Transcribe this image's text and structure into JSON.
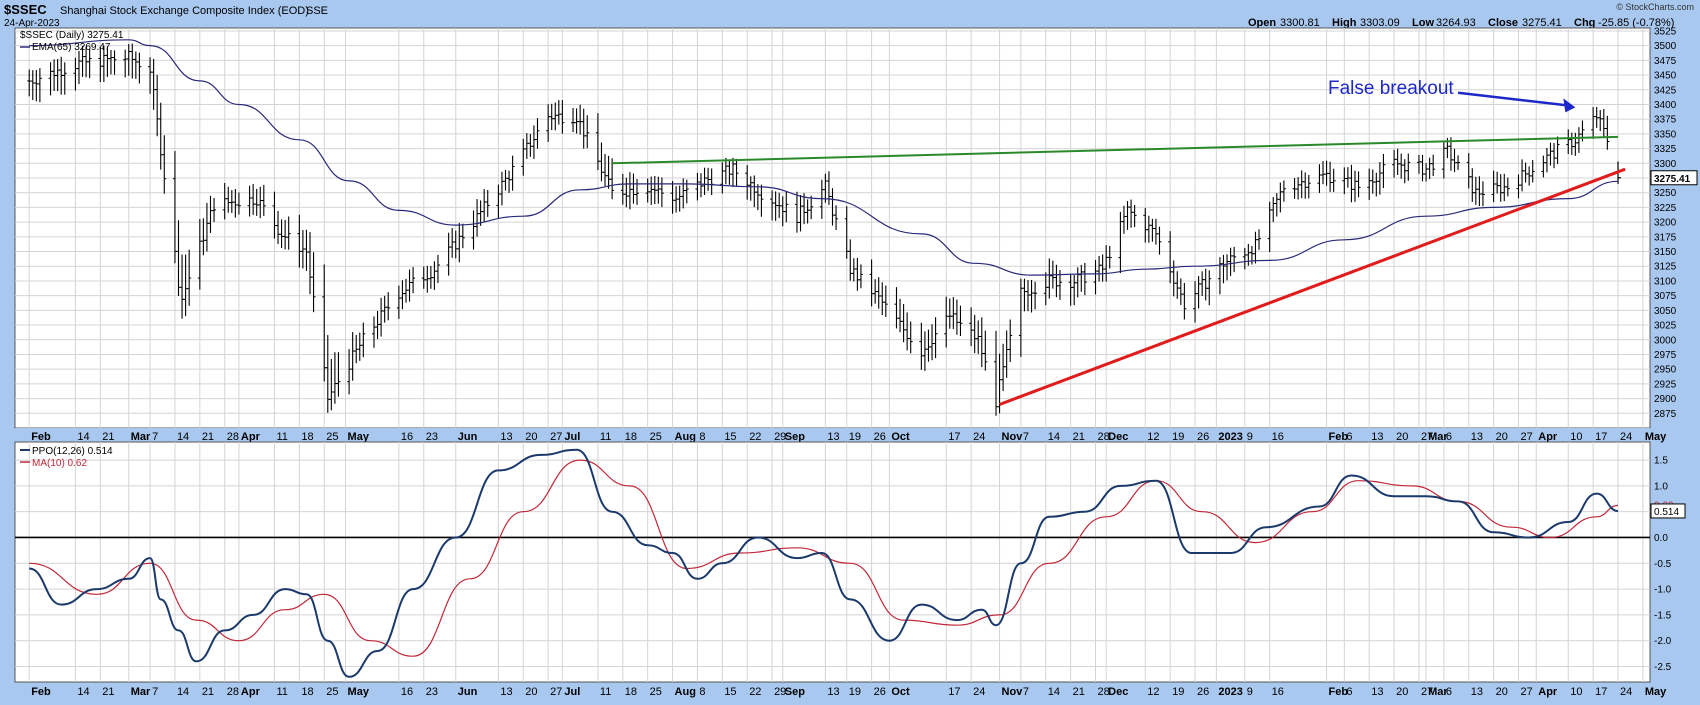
{
  "header": {
    "symbol": "$SSEC",
    "name": "Shanghai Stock Exchange Composite Index (EOD)",
    "exchange": "SSE",
    "date": "24-Apr-2023",
    "quote": {
      "open_label": "Open",
      "open": "3300.81",
      "high_label": "High",
      "high": "3303.09",
      "low_label": "Low",
      "low": "3264.93",
      "close_label": "Close",
      "close": "3275.41",
      "chg_label": "Chg",
      "chg": "-25.85 (-0.78%)"
    },
    "credit": "© StockCharts.com"
  },
  "colors": {
    "price_bar": "#000000",
    "ema": "#2a2a7a",
    "ppo": "#1b3a6b",
    "ppo_signal": "#c0283a",
    "green_line": "#2a8a2a",
    "red_line": "#e01c1c",
    "annotation": "#1e28c8",
    "grid": "#d4d4d4"
  },
  "chart_data": [
    {
      "type": "ohlc",
      "panel": "price",
      "legend": [
        "$SSEC (Daily) 3275.41",
        "EMA(65) 3269.47"
      ],
      "ylim": [
        2850,
        3530
      ],
      "yticks": [
        2875,
        2900,
        2925,
        2950,
        2975,
        3000,
        3025,
        3050,
        3075,
        3100,
        3125,
        3150,
        3175,
        3200,
        3225,
        3250,
        3275,
        3300,
        3325,
        3350,
        3375,
        3400,
        3425,
        3450,
        3475,
        3500,
        3525
      ],
      "last_value_label": "3275.41",
      "annotation": {
        "text": "False breakout"
      },
      "price_series": {
        "name": "$SSEC (Daily)",
        "x": [
          "2022-02-01",
          "2022-02-15",
          "2022-03-01",
          "2022-03-07",
          "2022-03-15",
          "2022-03-16",
          "2022-03-25",
          "2022-04-06",
          "2022-04-13",
          "2022-04-20",
          "2022-04-26",
          "2022-05-06",
          "2022-05-16",
          "2022-05-26",
          "2022-06-06",
          "2022-06-16",
          "2022-06-27",
          "2022-07-05",
          "2022-07-15",
          "2022-07-25",
          "2022-08-02",
          "2022-08-10",
          "2022-08-18",
          "2022-08-26",
          "2022-09-05",
          "2022-09-13",
          "2022-09-20",
          "2022-09-28",
          "2022-10-10",
          "2022-10-18",
          "2022-10-26",
          "2022-10-31",
          "2022-11-07",
          "2022-11-15",
          "2022-11-22",
          "2022-11-30",
          "2022-12-07",
          "2022-12-15",
          "2022-12-23",
          "2023-01-03",
          "2023-01-12",
          "2023-01-20",
          "2023-02-01",
          "2023-02-10",
          "2023-02-20",
          "2023-03-01",
          "2023-03-07",
          "2023-03-15",
          "2023-03-24",
          "2023-04-04",
          "2023-04-12",
          "2023-04-18",
          "2023-04-21",
          "2023-04-24"
        ],
        "close": [
          3440,
          3470,
          3480,
          3460,
          3100,
          3070,
          3230,
          3240,
          3180,
          3150,
          2900,
          3000,
          3080,
          3120,
          3200,
          3280,
          3380,
          3380,
          3250,
          3260,
          3240,
          3270,
          3290,
          3250,
          3210,
          3260,
          3120,
          3070,
          2980,
          3040,
          3000,
          2895,
          3080,
          3100,
          3100,
          3120,
          3220,
          3180,
          3060,
          3130,
          3160,
          3260,
          3280,
          3260,
          3300,
          3290,
          3320,
          3250,
          3260,
          3310,
          3340,
          3380,
          3340,
          3275.41
        ],
        "high": [
          3470,
          3500,
          3500,
          3480,
          3200,
          3180,
          3270,
          3280,
          3230,
          3200,
          3010,
          3030,
          3120,
          3150,
          3240,
          3300,
          3420,
          3420,
          3310,
          3300,
          3270,
          3300,
          3300,
          3270,
          3250,
          3280,
          3150,
          3110,
          3040,
          3090,
          3040,
          2990,
          3100,
          3150,
          3120,
          3150,
          3240,
          3200,
          3090,
          3150,
          3180,
          3280,
          3310,
          3290,
          3320,
          3310,
          3340,
          3280,
          3290,
          3330,
          3360,
          3400,
          3370,
          3303.09
        ],
        "low": [
          3390,
          3420,
          3430,
          3400,
          3080,
          3020,
          3200,
          3210,
          3150,
          3100,
          2870,
          2960,
          3050,
          3090,
          3170,
          3250,
          3350,
          3350,
          3220,
          3230,
          3200,
          3240,
          3260,
          3200,
          3180,
          3230,
          3100,
          3040,
          2940,
          3000,
          2960,
          2880,
          3020,
          3070,
          3050,
          3090,
          3180,
          3150,
          3030,
          3080,
          3130,
          3230,
          3250,
          3230,
          3260,
          3270,
          3300,
          3220,
          3240,
          3290,
          3320,
          3350,
          3320,
          3264.93
        ]
      },
      "ema": {
        "name": "EMA(65)",
        "x": [
          "2022-02-01",
          "2022-03-01",
          "2022-03-07",
          "2022-03-21",
          "2022-04-01",
          "2022-04-18",
          "2022-05-02",
          "2022-05-16",
          "2022-06-01",
          "2022-06-20",
          "2022-07-06",
          "2022-07-20",
          "2022-08-05",
          "2022-08-25",
          "2022-09-12",
          "2022-10-10",
          "2022-10-25",
          "2022-11-10",
          "2022-11-28",
          "2022-12-12",
          "2022-12-26",
          "2023-01-16",
          "2023-02-06",
          "2023-03-01",
          "2023-03-20",
          "2023-04-10",
          "2023-04-24"
        ],
        "values": [
          3500,
          3510,
          3500,
          3440,
          3400,
          3340,
          3270,
          3220,
          3195,
          3210,
          3255,
          3265,
          3265,
          3260,
          3240,
          3180,
          3130,
          3110,
          3112,
          3120,
          3125,
          3135,
          3170,
          3210,
          3225,
          3240,
          3269.47
        ]
      },
      "trendlines": [
        {
          "name": "resistance",
          "color": "green",
          "x": [
            "2022-07-15",
            "2023-04-24"
          ],
          "y": [
            3300,
            3345
          ]
        },
        {
          "name": "support",
          "color": "red",
          "x": [
            "2022-11-01",
            "2023-04-26"
          ],
          "y": [
            2890,
            3290
          ]
        }
      ],
      "arrow": {
        "x": [
          "2023-03-10",
          "2023-04-12"
        ],
        "y": [
          3420,
          3395
        ]
      }
    },
    {
      "type": "line",
      "panel": "ppo",
      "legend": [
        "PPO(12,26) 0.514",
        "MA(10) 0.62"
      ],
      "ylim": [
        -2.8,
        1.85
      ],
      "yticks": [
        -2.5,
        -2.0,
        -1.5,
        -1.0,
        -0.5,
        0.0,
        0.5,
        1.0,
        1.5
      ],
      "ytick_labels": [
        "-2.5",
        "-2.0",
        "-1.5",
        "-1.0",
        "-0.5",
        "0.0",
        "0.5",
        "1.0",
        "1.5"
      ],
      "last_value_label": "0.514",
      "signal_value_label": "0.62",
      "zero_line": 0,
      "series": [
        {
          "name": "PPO(12,26)",
          "x": [
            "2022-02-01",
            "2022-02-10",
            "2022-02-20",
            "2022-03-01",
            "2022-03-07",
            "2022-03-10",
            "2022-03-15",
            "2022-03-20",
            "2022-03-28",
            "2022-04-05",
            "2022-04-14",
            "2022-04-20",
            "2022-04-26",
            "2022-05-02",
            "2022-05-10",
            "2022-05-20",
            "2022-06-01",
            "2022-06-13",
            "2022-06-25",
            "2022-07-05",
            "2022-07-15",
            "2022-07-25",
            "2022-08-01",
            "2022-08-08",
            "2022-08-15",
            "2022-08-25",
            "2022-09-05",
            "2022-09-12",
            "2022-09-20",
            "2022-10-01",
            "2022-10-10",
            "2022-10-20",
            "2022-10-27",
            "2022-10-31",
            "2022-11-07",
            "2022-11-15",
            "2022-11-25",
            "2022-12-05",
            "2022-12-15",
            "2022-12-25",
            "2023-01-05",
            "2023-01-15",
            "2023-01-30",
            "2023-02-08",
            "2023-02-20",
            "2023-03-01",
            "2023-03-10",
            "2023-03-20",
            "2023-03-30",
            "2023-04-10",
            "2023-04-18",
            "2023-04-24"
          ],
          "values": [
            -0.6,
            -1.3,
            -1.0,
            -0.8,
            -0.4,
            -1.2,
            -1.8,
            -2.4,
            -1.8,
            -1.5,
            -1.0,
            -1.1,
            -2.0,
            -2.7,
            -2.2,
            -1.0,
            0.0,
            1.3,
            1.6,
            1.7,
            0.5,
            -0.15,
            -0.3,
            -0.8,
            -0.5,
            0.0,
            -0.4,
            -0.3,
            -1.2,
            -2.0,
            -1.3,
            -1.6,
            -1.4,
            -1.7,
            -0.5,
            0.4,
            0.5,
            1.0,
            1.1,
            -0.3,
            -0.3,
            0.2,
            0.6,
            1.2,
            0.8,
            0.8,
            0.7,
            0.1,
            0.0,
            0.3,
            0.85,
            0.514
          ]
        },
        {
          "name": "MA(10)",
          "x": [
            "2022-02-01",
            "2022-02-20",
            "2022-03-07",
            "2022-03-20",
            "2022-04-01",
            "2022-04-14",
            "2022-04-25",
            "2022-05-08",
            "2022-05-20",
            "2022-06-05",
            "2022-06-20",
            "2022-07-06",
            "2022-07-20",
            "2022-08-05",
            "2022-08-20",
            "2022-09-05",
            "2022-09-20",
            "2022-10-05",
            "2022-10-20",
            "2022-11-01",
            "2022-11-15",
            "2022-12-01",
            "2022-12-15",
            "2022-12-28",
            "2023-01-12",
            "2023-01-28",
            "2023-02-10",
            "2023-02-25",
            "2023-03-10",
            "2023-03-25",
            "2023-04-05",
            "2023-04-18",
            "2023-04-24"
          ],
          "values": [
            -0.5,
            -1.1,
            -0.5,
            -1.6,
            -2.0,
            -1.4,
            -1.1,
            -2.0,
            -2.3,
            -0.8,
            0.5,
            1.5,
            1.0,
            -0.6,
            -0.3,
            -0.2,
            -0.5,
            -1.6,
            -1.7,
            -1.5,
            -0.5,
            0.4,
            1.1,
            0.5,
            -0.1,
            0.5,
            1.1,
            1.0,
            0.7,
            0.2,
            0.0,
            0.4,
            0.62
          ]
        }
      ]
    }
  ],
  "x_axis": {
    "ticks": [
      {
        "date": "2022-02-01",
        "label": "Feb",
        "month": true
      },
      {
        "date": "2022-02-14",
        "label": "14"
      },
      {
        "date": "2022-02-21",
        "label": "21"
      },
      {
        "date": "2022-03-01",
        "label": "Mar",
        "month": true
      },
      {
        "date": "2022-03-07",
        "label": "7"
      },
      {
        "date": "2022-03-14",
        "label": "14"
      },
      {
        "date": "2022-03-21",
        "label": "21"
      },
      {
        "date": "2022-03-28",
        "label": "28"
      },
      {
        "date": "2022-04-01",
        "label": "Apr",
        "month": true
      },
      {
        "date": "2022-04-11",
        "label": "11"
      },
      {
        "date": "2022-04-18",
        "label": "18"
      },
      {
        "date": "2022-04-25",
        "label": "25"
      },
      {
        "date": "2022-05-01",
        "label": "May",
        "month": true
      },
      {
        "date": "2022-05-16",
        "label": "16"
      },
      {
        "date": "2022-05-23",
        "label": "23"
      },
      {
        "date": "2022-06-01",
        "label": "Jun",
        "month": true
      },
      {
        "date": "2022-06-13",
        "label": "13"
      },
      {
        "date": "2022-06-20",
        "label": "20"
      },
      {
        "date": "2022-06-27",
        "label": "27"
      },
      {
        "date": "2022-07-01",
        "label": "Jul",
        "month": true
      },
      {
        "date": "2022-07-11",
        "label": "11"
      },
      {
        "date": "2022-07-18",
        "label": "18"
      },
      {
        "date": "2022-07-25",
        "label": "25"
      },
      {
        "date": "2022-08-01",
        "label": "Aug",
        "month": true
      },
      {
        "date": "2022-08-08",
        "label": "8"
      },
      {
        "date": "2022-08-15",
        "label": "15"
      },
      {
        "date": "2022-08-22",
        "label": "22"
      },
      {
        "date": "2022-08-29",
        "label": "29"
      },
      {
        "date": "2022-09-01",
        "label": "Sep",
        "month": true
      },
      {
        "date": "2022-09-13",
        "label": "13"
      },
      {
        "date": "2022-09-19",
        "label": "19"
      },
      {
        "date": "2022-09-26",
        "label": "26"
      },
      {
        "date": "2022-10-01",
        "label": "Oct",
        "month": true
      },
      {
        "date": "2022-10-17",
        "label": "17"
      },
      {
        "date": "2022-10-24",
        "label": "24"
      },
      {
        "date": "2022-11-01",
        "label": "Nov",
        "month": true
      },
      {
        "date": "2022-11-07",
        "label": "7"
      },
      {
        "date": "2022-11-14",
        "label": "14"
      },
      {
        "date": "2022-11-21",
        "label": "21"
      },
      {
        "date": "2022-11-28",
        "label": "28"
      },
      {
        "date": "2022-12-01",
        "label": "Dec",
        "month": true
      },
      {
        "date": "2022-12-12",
        "label": "12"
      },
      {
        "date": "2022-12-19",
        "label": "19"
      },
      {
        "date": "2022-12-26",
        "label": "26"
      },
      {
        "date": "2023-01-01",
        "label": "2023",
        "month": true
      },
      {
        "date": "2023-01-09",
        "label": "9"
      },
      {
        "date": "2023-01-16",
        "label": "16"
      },
      {
        "date": "2023-02-01",
        "label": "Feb",
        "month": true
      },
      {
        "date": "2023-02-06",
        "label": "6"
      },
      {
        "date": "2023-02-13",
        "label": "13"
      },
      {
        "date": "2023-02-20",
        "label": "20"
      },
      {
        "date": "2023-02-27",
        "label": "27"
      },
      {
        "date": "2023-03-01",
        "label": "Mar",
        "month": true
      },
      {
        "date": "2023-03-06",
        "label": "6"
      },
      {
        "date": "2023-03-13",
        "label": "13"
      },
      {
        "date": "2023-03-20",
        "label": "20"
      },
      {
        "date": "2023-03-27",
        "label": "27"
      },
      {
        "date": "2023-04-01",
        "label": "Apr",
        "month": true
      },
      {
        "date": "2023-04-10",
        "label": "10"
      },
      {
        "date": "2023-04-17",
        "label": "17"
      },
      {
        "date": "2023-04-24",
        "label": "24"
      },
      {
        "date": "2023-05-01",
        "label": "May",
        "month": true
      }
    ]
  }
}
